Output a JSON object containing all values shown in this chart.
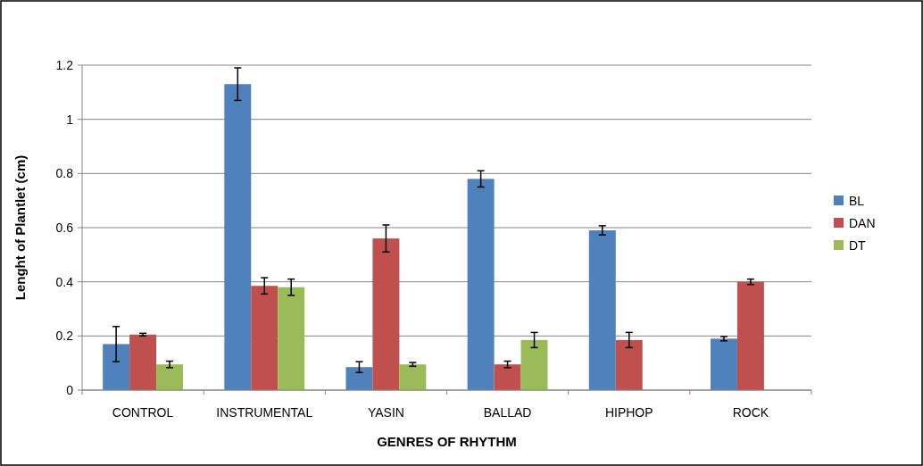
{
  "chart_data": {
    "type": "bar",
    "xlabel": "GENRES OF RHYTHM",
    "ylabel": "Lenght of Plantlet (cm)",
    "categories": [
      "CONTROL",
      "INSTRUMENTAL",
      "YASIN",
      "BALLAD",
      "HIPHOP",
      "ROCK"
    ],
    "series": [
      {
        "name": "BL",
        "color": "#4f81bd",
        "values": [
          0.17,
          1.13,
          0.085,
          0.78,
          0.59,
          0.19
        ],
        "errors": [
          0.065,
          0.06,
          0.02,
          0.03,
          0.017,
          0.008
        ]
      },
      {
        "name": "DAN",
        "color": "#c0504d",
        "values": [
          0.205,
          0.385,
          0.56,
          0.095,
          0.185,
          0.4
        ],
        "errors": [
          0.005,
          0.03,
          0.05,
          0.012,
          0.028,
          0.01
        ]
      },
      {
        "name": "DT",
        "color": "#9bbb59",
        "values": [
          0.095,
          0.38,
          0.095,
          0.185,
          null,
          null
        ],
        "errors": [
          0.012,
          0.03,
          0.007,
          0.028,
          null,
          null
        ]
      }
    ],
    "ylim": [
      0,
      1.2
    ],
    "yticks": [
      0,
      0.2,
      0.4,
      0.6,
      0.8,
      1,
      1.2
    ],
    "grid": "y",
    "legend": "right"
  }
}
